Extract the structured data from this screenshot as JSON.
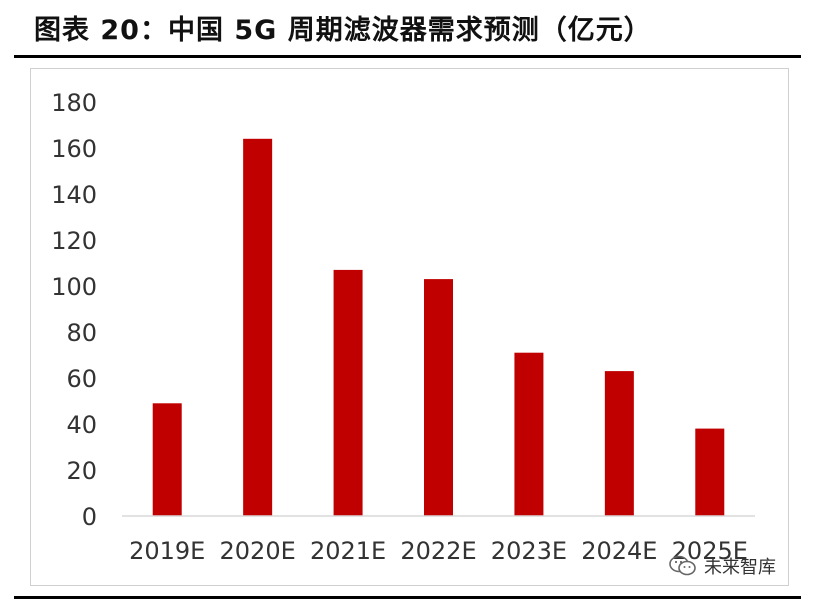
{
  "header": {
    "title": "图表 20：中国 5G 周期滤波器需求预测（亿元）"
  },
  "watermark": {
    "text": "未来智库",
    "icon": "wechat-icon"
  },
  "colors": {
    "bar": "#C00000",
    "axis": "#d9d9d9",
    "text": "#333333"
  },
  "chart_data": {
    "type": "bar",
    "title": "图表 20：中国 5G 周期滤波器需求预测（亿元）",
    "categories": [
      "2019E",
      "2020E",
      "2021E",
      "2022E",
      "2023E",
      "2024E",
      "2025E"
    ],
    "values": [
      49,
      164,
      107,
      103,
      71,
      63,
      38
    ],
    "ylim": [
      0,
      180
    ],
    "yticks": [
      0,
      20,
      40,
      60,
      80,
      100,
      120,
      140,
      160,
      180
    ],
    "xlabel": "",
    "ylabel": "",
    "grid": false,
    "legend": "none"
  }
}
